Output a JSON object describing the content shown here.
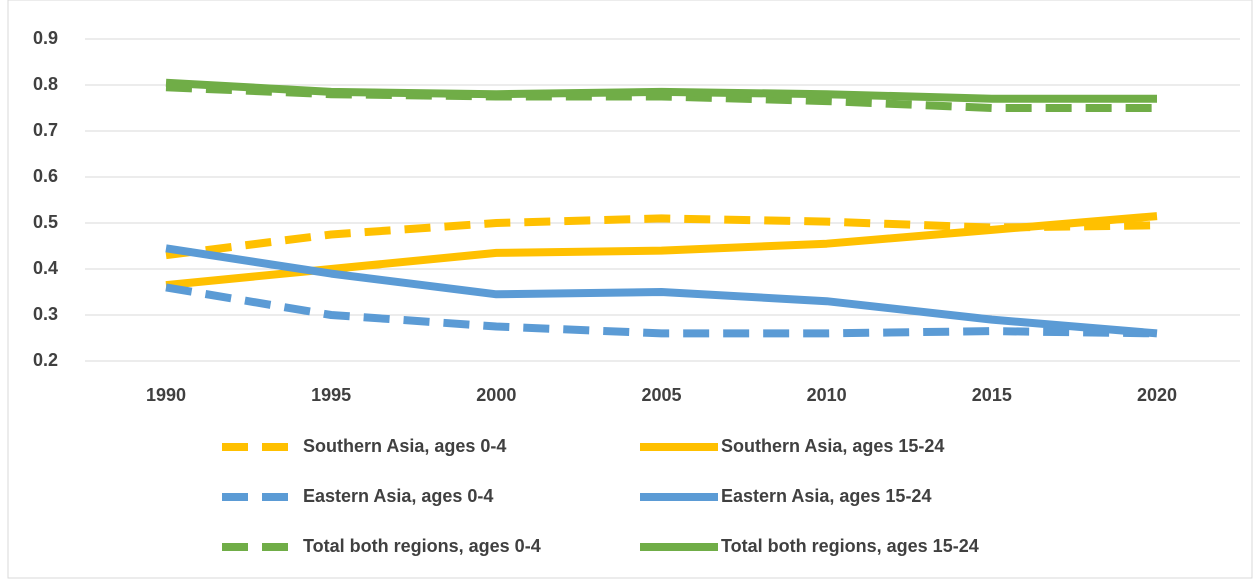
{
  "chart_data": {
    "type": "line",
    "categories": [
      "1990",
      "1995",
      "2000",
      "2005",
      "2010",
      "2015",
      "2020"
    ],
    "series": [
      {
        "name": "Southern Asia, ages 0-4",
        "color": "#ffc000",
        "dashed": true,
        "values": [
          0.43,
          0.475,
          0.5,
          0.51,
          0.503,
          0.49,
          0.495
        ]
      },
      {
        "name": "Southern Asia, ages 15-24",
        "color": "#ffc000",
        "dashed": false,
        "values": [
          0.365,
          0.4,
          0.435,
          0.44,
          0.455,
          0.485,
          0.515
        ]
      },
      {
        "name": "Eastern Asia, ages 0-4",
        "color": "#5b9bd5",
        "dashed": true,
        "values": [
          0.36,
          0.3,
          0.275,
          0.26,
          0.26,
          0.265,
          0.26
        ]
      },
      {
        "name": "Eastern Asia, ages 15-24",
        "color": "#5b9bd5",
        "dashed": false,
        "values": [
          0.445,
          0.39,
          0.345,
          0.35,
          0.33,
          0.29,
          0.26
        ]
      },
      {
        "name": "Total both regions, ages 0-4",
        "color": "#70ad47",
        "dashed": true,
        "values": [
          0.795,
          0.78,
          0.775,
          0.775,
          0.765,
          0.75,
          0.75
        ]
      },
      {
        "name": "Total both regions, ages 15-24",
        "color": "#70ad47",
        "dashed": false,
        "values": [
          0.805,
          0.785,
          0.78,
          0.785,
          0.78,
          0.77,
          0.77
        ]
      }
    ],
    "ylim": [
      0.2,
      0.9
    ],
    "yticks": [
      0.2,
      0.3,
      0.4,
      0.5,
      0.6,
      0.7,
      0.8,
      0.9
    ],
    "grid": true
  }
}
